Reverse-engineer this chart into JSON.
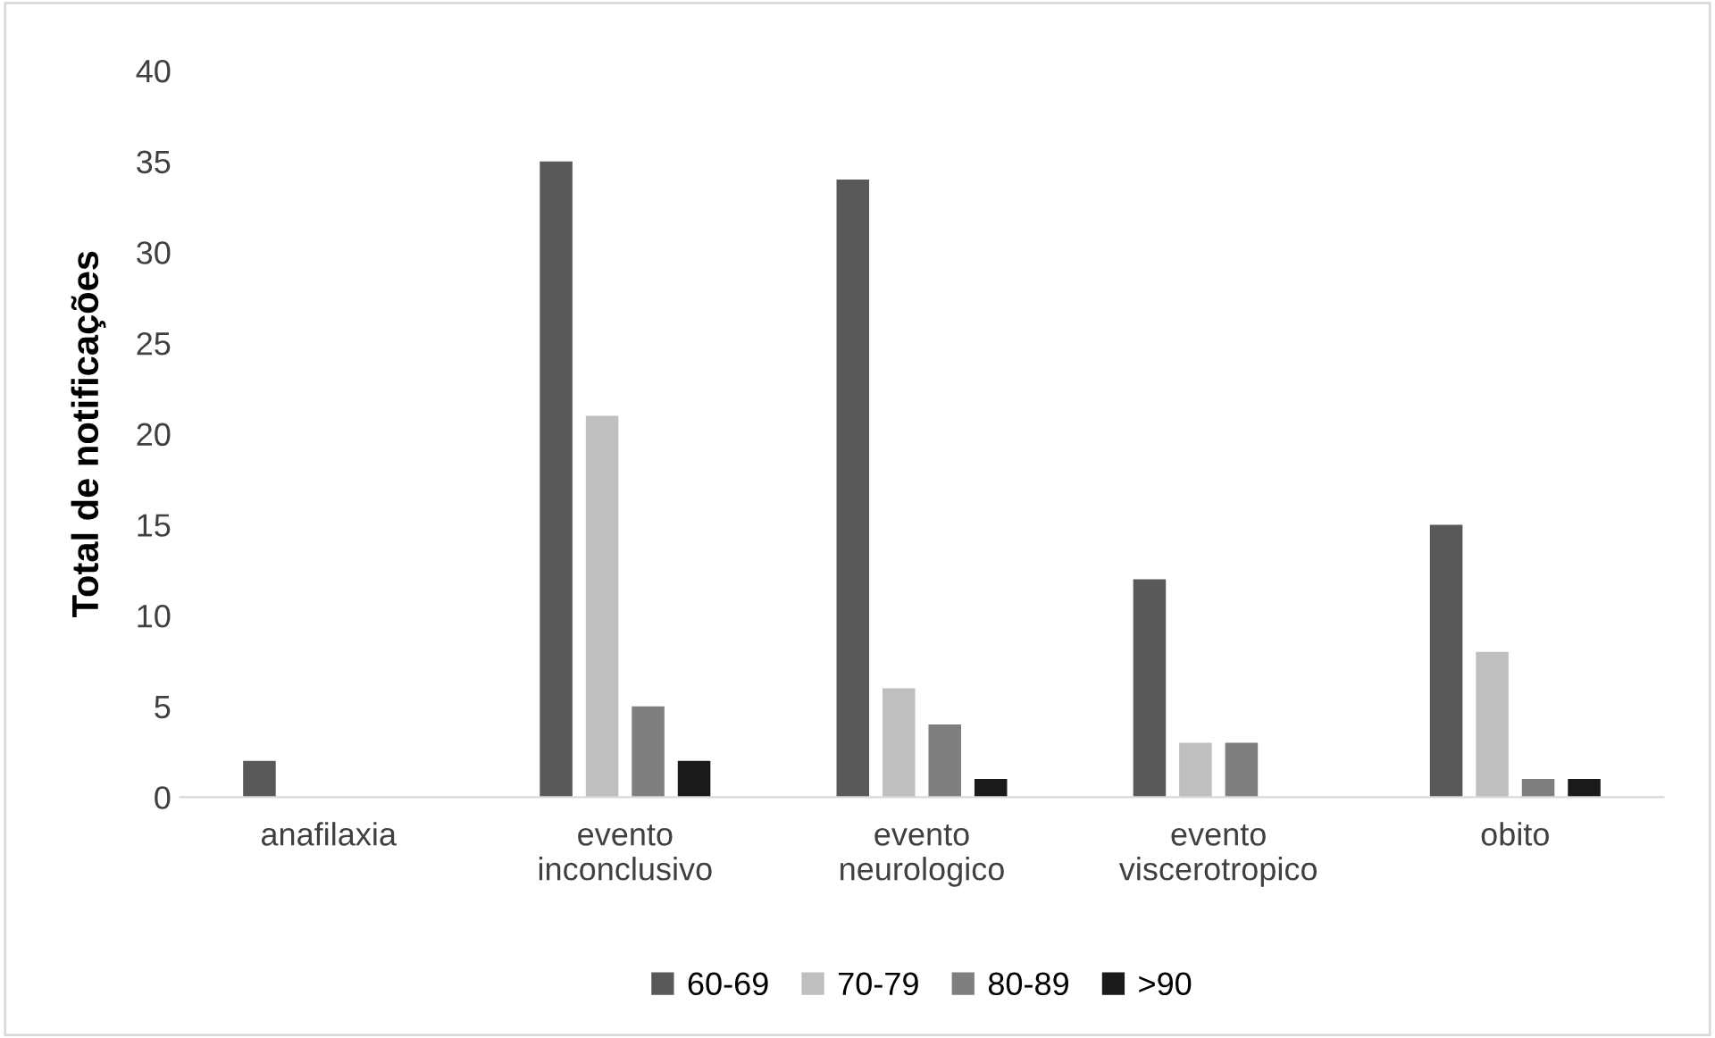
{
  "chart_data": {
    "type": "bar",
    "ylabel": "Total de notificações",
    "categories": [
      "anafilaxia",
      "evento\ninconclusivo",
      "evento\nneurologico",
      "evento\nviscerotropico",
      "obito"
    ],
    "series": [
      {
        "name": "60-69",
        "color": "#595959",
        "values": [
          2,
          35,
          34,
          12,
          15
        ]
      },
      {
        "name": "70-79",
        "color": "#bfbfbf",
        "values": [
          0,
          21,
          6,
          3,
          8
        ]
      },
      {
        "name": "80-89",
        "color": "#7f7f7f",
        "values": [
          0,
          5,
          4,
          3,
          1
        ]
      },
      {
        "name": ">90",
        "color": "#1a1a1a",
        "values": [
          0,
          2,
          1,
          0,
          1
        ]
      }
    ],
    "ylim": [
      0,
      40
    ],
    "yticks": [
      0,
      5,
      10,
      15,
      20,
      25,
      30,
      35,
      40
    ],
    "grid": false,
    "legend": "bottom"
  }
}
